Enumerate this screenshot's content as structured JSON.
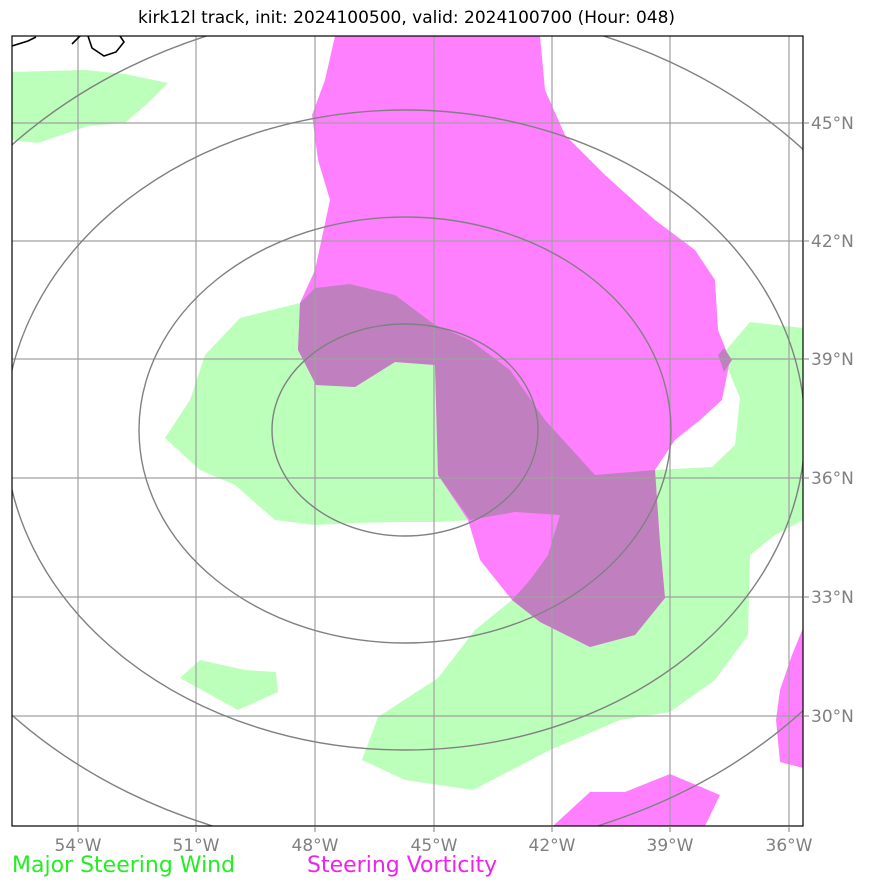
{
  "title": "kirk12l track, init: 2024100500, valid: 2024100700 (Hour: 048)",
  "map": {
    "lon_range": [
      -55.7,
      -35.7
    ],
    "lat_range": [
      26.7,
      46.7
    ],
    "lon_ticks": [
      {
        "value": -54,
        "label": "54°W"
      },
      {
        "value": -51,
        "label": "51°W"
      },
      {
        "value": -48,
        "label": "48°W"
      },
      {
        "value": -45,
        "label": "45°W"
      },
      {
        "value": -42,
        "label": "42°W"
      },
      {
        "value": -39,
        "label": "39°W"
      },
      {
        "value": -36,
        "label": "36°W"
      }
    ],
    "lat_ticks": [
      {
        "value": 45,
        "label": "45°N"
      },
      {
        "value": 42,
        "label": "42°N"
      },
      {
        "value": 39,
        "label": "39°N"
      },
      {
        "value": 36,
        "label": "36°N"
      },
      {
        "value": 33,
        "label": "33°N"
      },
      {
        "value": 30,
        "label": "30°N"
      }
    ],
    "colors": {
      "wind_fill": "#bbffbb",
      "vorticity_fill": "#ff80ff",
      "overlap_fill": "#c080c0",
      "grid": "#a0a0a0",
      "range_rings": "#808080",
      "coastline": "#000000"
    }
  },
  "legend": {
    "wind": "Major Steering Wind",
    "vorticity": "Steering Vorticity"
  }
}
